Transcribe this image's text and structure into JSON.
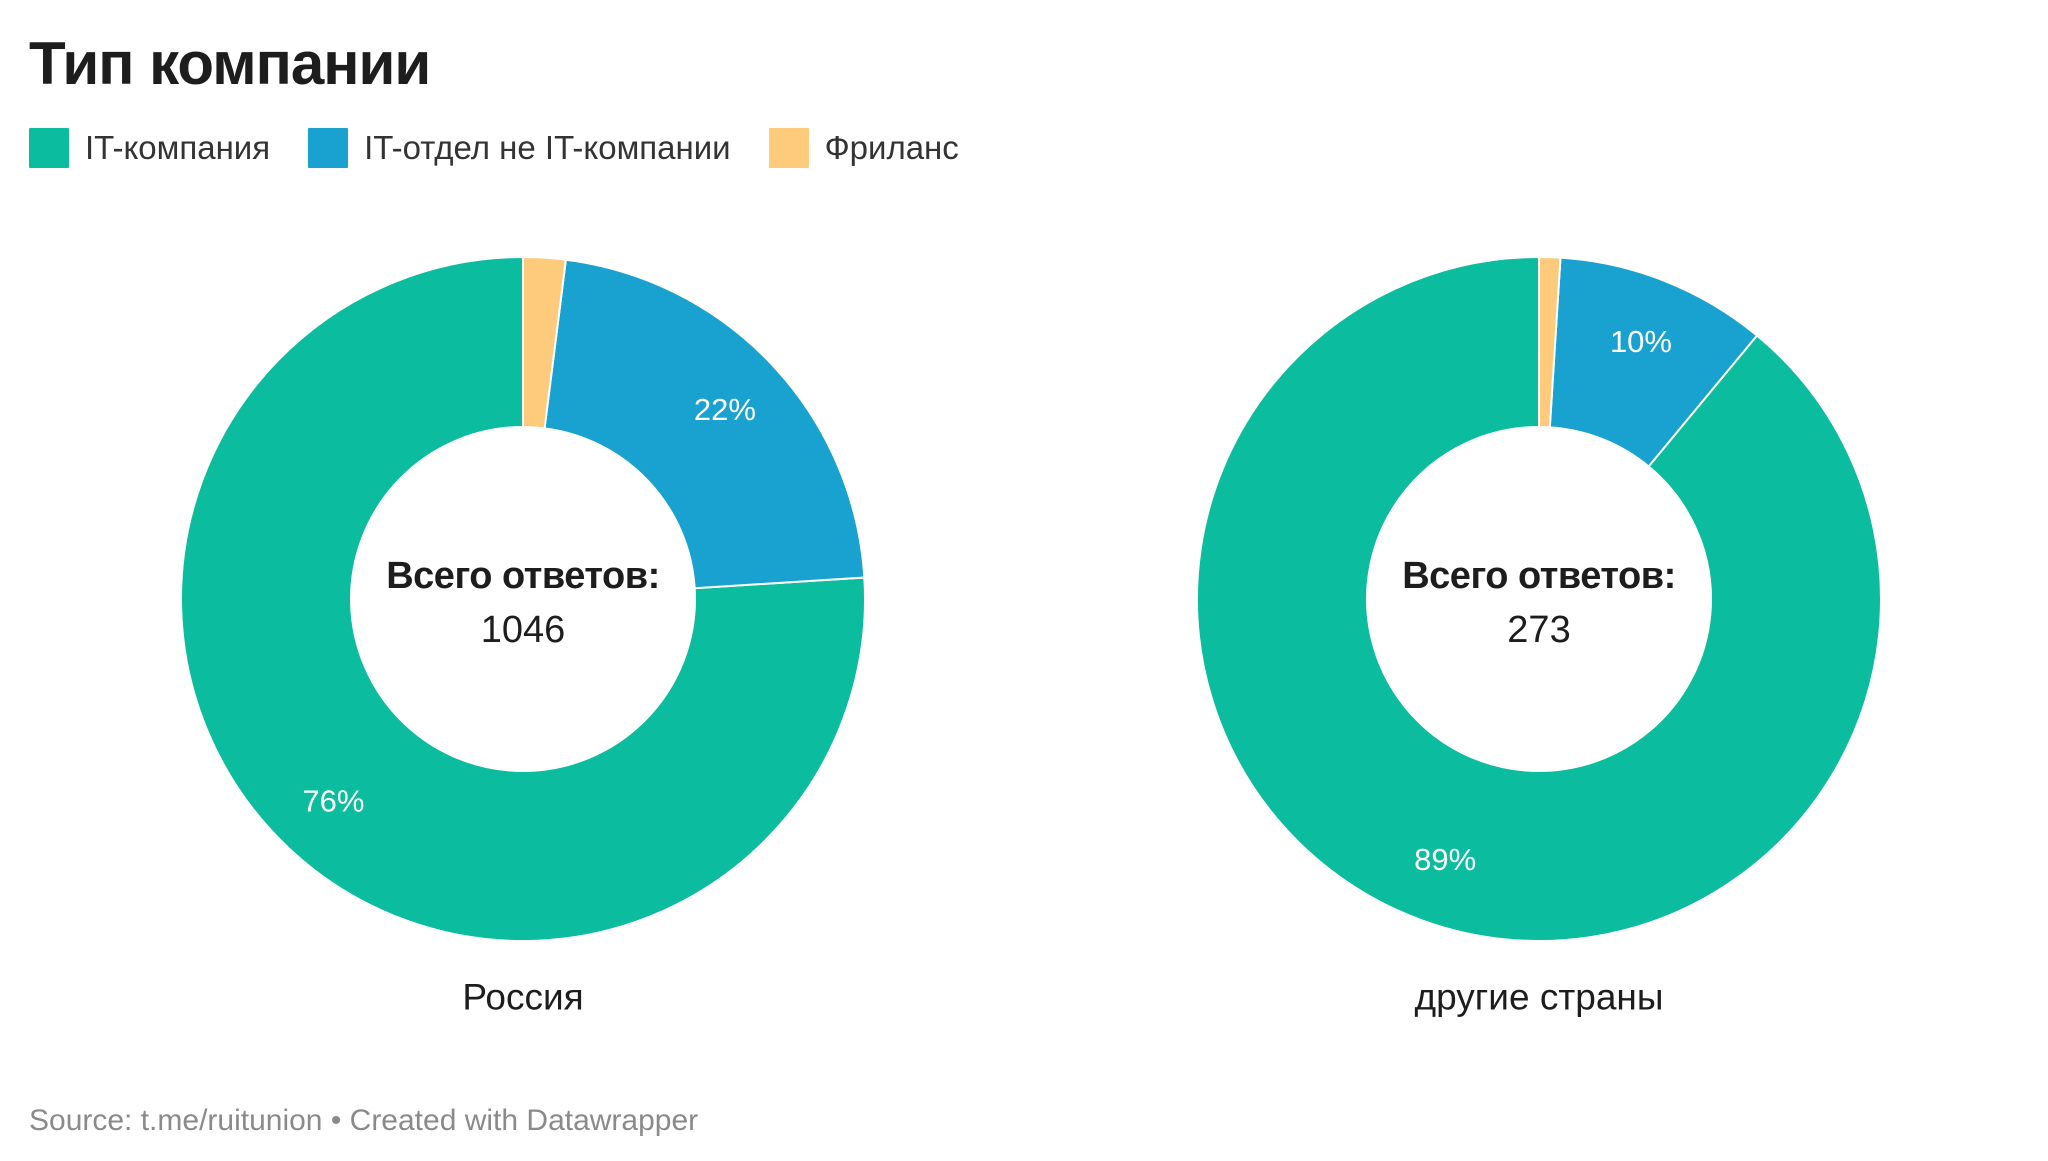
{
  "chart_data": {
    "type": "pie",
    "title": "Тип компании",
    "legend": {
      "placement": "top-left",
      "entries": [
        {
          "name": "IT-компания",
          "color": "#0bbc9f"
        },
        {
          "name": "IT-отдел не IT-компании",
          "color": "#19a1cf"
        },
        {
          "name": "Фриланс",
          "color": "#fdcb7b"
        }
      ]
    },
    "charts": [
      {
        "label": "Россия",
        "center_label": "Всего ответов:",
        "center_value": "1046",
        "slices": [
          {
            "name": "IT-компания",
            "value": 76,
            "label": "76%"
          },
          {
            "name": "IT-отдел не IT-компании",
            "value": 22,
            "label": "22%"
          },
          {
            "name": "Фриланс",
            "value": 2,
            "label": ""
          }
        ]
      },
      {
        "label": "другие страны",
        "center_label": "Всего ответов:",
        "center_value": "273",
        "slices": [
          {
            "name": "IT-компания",
            "value": 89,
            "label": "89%"
          },
          {
            "name": "IT-отдел не IT-компании",
            "value": 10,
            "label": "10%"
          },
          {
            "name": "Фриланс",
            "value": 1,
            "label": ""
          }
        ]
      }
    ]
  },
  "footer": {
    "text": "Source: t.me/ruitunion • Created with Datawrapper"
  }
}
